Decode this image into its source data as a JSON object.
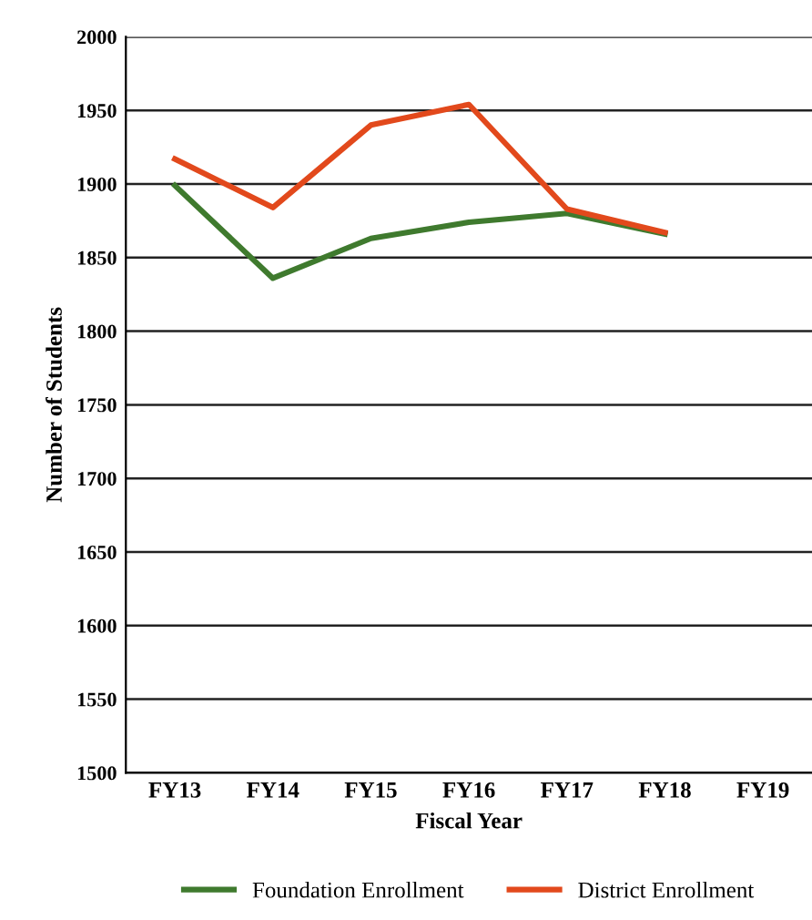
{
  "chart_data": {
    "type": "line",
    "xlabel": "Fiscal Year",
    "ylabel": "Number of Students",
    "categories": [
      "FY13",
      "FY14",
      "FY15",
      "FY16",
      "FY17",
      "FY18",
      "FY19"
    ],
    "series": [
      {
        "name": "Foundation Enrollment",
        "color": "#3f7a2e",
        "values": [
          1899,
          1836,
          1863,
          1874,
          1880,
          1866,
          null
        ]
      },
      {
        "name": "District Enrollment",
        "color": "#e2491c",
        "values": [
          1917,
          1884,
          1940,
          1954,
          1883,
          1867,
          null
        ]
      }
    ],
    "ylim": [
      1500,
      2000
    ],
    "yticks": [
      1500,
      1550,
      1600,
      1650,
      1700,
      1750,
      1800,
      1850,
      1900,
      1950,
      2000
    ],
    "grid": "y",
    "legend": "bottom",
    "marker": "none",
    "line_style": "solid"
  }
}
